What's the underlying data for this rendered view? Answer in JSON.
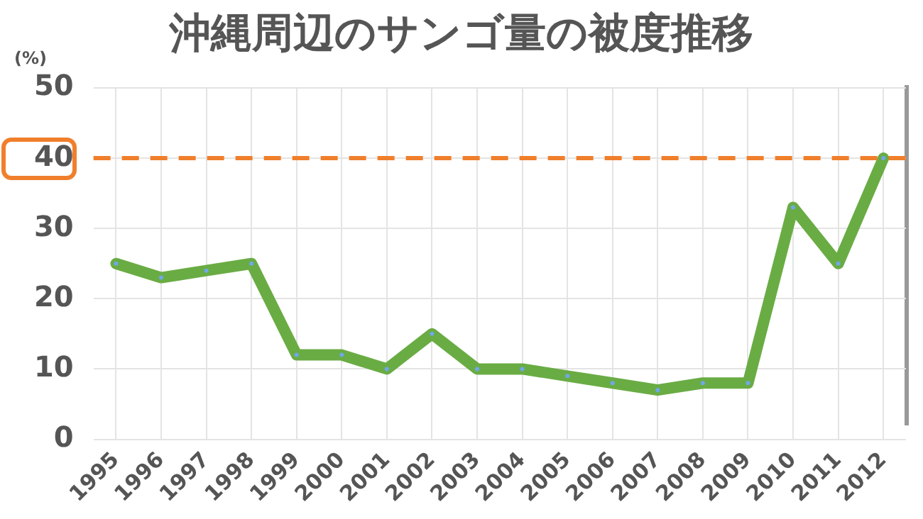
{
  "chart_data": {
    "type": "line",
    "title": "沖縄周辺のサンゴ量の被度推移",
    "ylabel": "(%)",
    "categories": [
      "1995",
      "1996",
      "1997",
      "1998",
      "1999",
      "2000",
      "2001",
      "2002",
      "2003",
      "2004",
      "2005",
      "2006",
      "2007",
      "2008",
      "2009",
      "2010",
      "2011",
      "2012"
    ],
    "series": [
      {
        "color": "#6aac44",
        "values": [
          25,
          23,
          24,
          25,
          12,
          12,
          10,
          15,
          10,
          10,
          9,
          8,
          7,
          8,
          8,
          33,
          25,
          40
        ]
      }
    ],
    "ylim": [
      0,
      50
    ],
    "yticks": [
      0,
      10,
      20,
      30,
      40,
      50
    ],
    "grid": true,
    "legend": false,
    "marker": "circle",
    "line_style": "solid",
    "ref_lines": [
      {
        "axis": "y",
        "value": 40,
        "color": "#f07f2c",
        "line_style": "dashed"
      }
    ]
  }
}
